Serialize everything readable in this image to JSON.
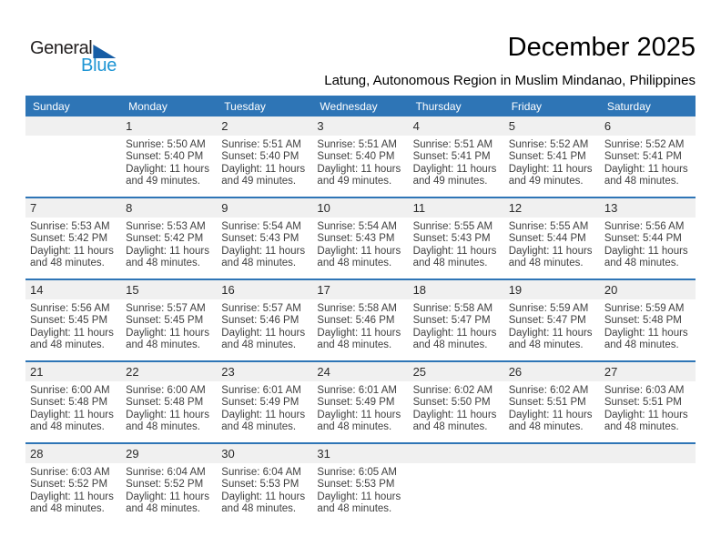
{
  "logo": {
    "word1": "General",
    "word2": "Blue"
  },
  "header": {
    "title": "December 2025",
    "subtitle": "Latung, Autonomous Region in Muslim Mindanao, Philippines"
  },
  "colors": {
    "header_blue": "#2e75b6",
    "band_gray": "#f0f0f0",
    "logo_blue": "#1e95d4",
    "logo_triangle_blue": "#175da5"
  },
  "calendar": {
    "weekdays": [
      "Sunday",
      "Monday",
      "Tuesday",
      "Wednesday",
      "Thursday",
      "Friday",
      "Saturday"
    ],
    "weeks": [
      [
        {
          "day": "",
          "sunrise": "",
          "sunset": "",
          "daylight_a": "",
          "daylight_b": ""
        },
        {
          "day": "1",
          "sunrise": "Sunrise: 5:50 AM",
          "sunset": "Sunset: 5:40 PM",
          "daylight_a": "Daylight: 11 hours",
          "daylight_b": "and 49 minutes."
        },
        {
          "day": "2",
          "sunrise": "Sunrise: 5:51 AM",
          "sunset": "Sunset: 5:40 PM",
          "daylight_a": "Daylight: 11 hours",
          "daylight_b": "and 49 minutes."
        },
        {
          "day": "3",
          "sunrise": "Sunrise: 5:51 AM",
          "sunset": "Sunset: 5:40 PM",
          "daylight_a": "Daylight: 11 hours",
          "daylight_b": "and 49 minutes."
        },
        {
          "day": "4",
          "sunrise": "Sunrise: 5:51 AM",
          "sunset": "Sunset: 5:41 PM",
          "daylight_a": "Daylight: 11 hours",
          "daylight_b": "and 49 minutes."
        },
        {
          "day": "5",
          "sunrise": "Sunrise: 5:52 AM",
          "sunset": "Sunset: 5:41 PM",
          "daylight_a": "Daylight: 11 hours",
          "daylight_b": "and 49 minutes."
        },
        {
          "day": "6",
          "sunrise": "Sunrise: 5:52 AM",
          "sunset": "Sunset: 5:41 PM",
          "daylight_a": "Daylight: 11 hours",
          "daylight_b": "and 48 minutes."
        }
      ],
      [
        {
          "day": "7",
          "sunrise": "Sunrise: 5:53 AM",
          "sunset": "Sunset: 5:42 PM",
          "daylight_a": "Daylight: 11 hours",
          "daylight_b": "and 48 minutes."
        },
        {
          "day": "8",
          "sunrise": "Sunrise: 5:53 AM",
          "sunset": "Sunset: 5:42 PM",
          "daylight_a": "Daylight: 11 hours",
          "daylight_b": "and 48 minutes."
        },
        {
          "day": "9",
          "sunrise": "Sunrise: 5:54 AM",
          "sunset": "Sunset: 5:43 PM",
          "daylight_a": "Daylight: 11 hours",
          "daylight_b": "and 48 minutes."
        },
        {
          "day": "10",
          "sunrise": "Sunrise: 5:54 AM",
          "sunset": "Sunset: 5:43 PM",
          "daylight_a": "Daylight: 11 hours",
          "daylight_b": "and 48 minutes."
        },
        {
          "day": "11",
          "sunrise": "Sunrise: 5:55 AM",
          "sunset": "Sunset: 5:43 PM",
          "daylight_a": "Daylight: 11 hours",
          "daylight_b": "and 48 minutes."
        },
        {
          "day": "12",
          "sunrise": "Sunrise: 5:55 AM",
          "sunset": "Sunset: 5:44 PM",
          "daylight_a": "Daylight: 11 hours",
          "daylight_b": "and 48 minutes."
        },
        {
          "day": "13",
          "sunrise": "Sunrise: 5:56 AM",
          "sunset": "Sunset: 5:44 PM",
          "daylight_a": "Daylight: 11 hours",
          "daylight_b": "and 48 minutes."
        }
      ],
      [
        {
          "day": "14",
          "sunrise": "Sunrise: 5:56 AM",
          "sunset": "Sunset: 5:45 PM",
          "daylight_a": "Daylight: 11 hours",
          "daylight_b": "and 48 minutes."
        },
        {
          "day": "15",
          "sunrise": "Sunrise: 5:57 AM",
          "sunset": "Sunset: 5:45 PM",
          "daylight_a": "Daylight: 11 hours",
          "daylight_b": "and 48 minutes."
        },
        {
          "day": "16",
          "sunrise": "Sunrise: 5:57 AM",
          "sunset": "Sunset: 5:46 PM",
          "daylight_a": "Daylight: 11 hours",
          "daylight_b": "and 48 minutes."
        },
        {
          "day": "17",
          "sunrise": "Sunrise: 5:58 AM",
          "sunset": "Sunset: 5:46 PM",
          "daylight_a": "Daylight: 11 hours",
          "daylight_b": "and 48 minutes."
        },
        {
          "day": "18",
          "sunrise": "Sunrise: 5:58 AM",
          "sunset": "Sunset: 5:47 PM",
          "daylight_a": "Daylight: 11 hours",
          "daylight_b": "and 48 minutes."
        },
        {
          "day": "19",
          "sunrise": "Sunrise: 5:59 AM",
          "sunset": "Sunset: 5:47 PM",
          "daylight_a": "Daylight: 11 hours",
          "daylight_b": "and 48 minutes."
        },
        {
          "day": "20",
          "sunrise": "Sunrise: 5:59 AM",
          "sunset": "Sunset: 5:48 PM",
          "daylight_a": "Daylight: 11 hours",
          "daylight_b": "and 48 minutes."
        }
      ],
      [
        {
          "day": "21",
          "sunrise": "Sunrise: 6:00 AM",
          "sunset": "Sunset: 5:48 PM",
          "daylight_a": "Daylight: 11 hours",
          "daylight_b": "and 48 minutes."
        },
        {
          "day": "22",
          "sunrise": "Sunrise: 6:00 AM",
          "sunset": "Sunset: 5:48 PM",
          "daylight_a": "Daylight: 11 hours",
          "daylight_b": "and 48 minutes."
        },
        {
          "day": "23",
          "sunrise": "Sunrise: 6:01 AM",
          "sunset": "Sunset: 5:49 PM",
          "daylight_a": "Daylight: 11 hours",
          "daylight_b": "and 48 minutes."
        },
        {
          "day": "24",
          "sunrise": "Sunrise: 6:01 AM",
          "sunset": "Sunset: 5:49 PM",
          "daylight_a": "Daylight: 11 hours",
          "daylight_b": "and 48 minutes."
        },
        {
          "day": "25",
          "sunrise": "Sunrise: 6:02 AM",
          "sunset": "Sunset: 5:50 PM",
          "daylight_a": "Daylight: 11 hours",
          "daylight_b": "and 48 minutes."
        },
        {
          "day": "26",
          "sunrise": "Sunrise: 6:02 AM",
          "sunset": "Sunset: 5:51 PM",
          "daylight_a": "Daylight: 11 hours",
          "daylight_b": "and 48 minutes."
        },
        {
          "day": "27",
          "sunrise": "Sunrise: 6:03 AM",
          "sunset": "Sunset: 5:51 PM",
          "daylight_a": "Daylight: 11 hours",
          "daylight_b": "and 48 minutes."
        }
      ],
      [
        {
          "day": "28",
          "sunrise": "Sunrise: 6:03 AM",
          "sunset": "Sunset: 5:52 PM",
          "daylight_a": "Daylight: 11 hours",
          "daylight_b": "and 48 minutes."
        },
        {
          "day": "29",
          "sunrise": "Sunrise: 6:04 AM",
          "sunset": "Sunset: 5:52 PM",
          "daylight_a": "Daylight: 11 hours",
          "daylight_b": "and 48 minutes."
        },
        {
          "day": "30",
          "sunrise": "Sunrise: 6:04 AM",
          "sunset": "Sunset: 5:53 PM",
          "daylight_a": "Daylight: 11 hours",
          "daylight_b": "and 48 minutes."
        },
        {
          "day": "31",
          "sunrise": "Sunrise: 6:05 AM",
          "sunset": "Sunset: 5:53 PM",
          "daylight_a": "Daylight: 11 hours",
          "daylight_b": "and 48 minutes."
        },
        {
          "day": "",
          "sunrise": "",
          "sunset": "",
          "daylight_a": "",
          "daylight_b": ""
        },
        {
          "day": "",
          "sunrise": "",
          "sunset": "",
          "daylight_a": "",
          "daylight_b": ""
        },
        {
          "day": "",
          "sunrise": "",
          "sunset": "",
          "daylight_a": "",
          "daylight_b": ""
        }
      ]
    ]
  }
}
